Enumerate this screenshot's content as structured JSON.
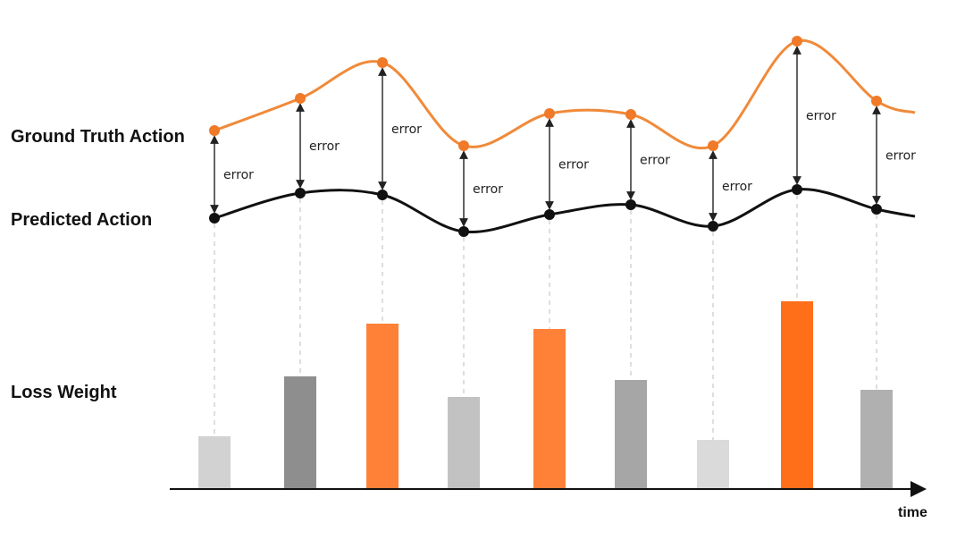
{
  "labels": {
    "ground_truth": "Ground Truth Action",
    "predicted": "Predicted Action",
    "loss_weight": "Loss Weight",
    "time_axis": "time"
  },
  "error_label": "error",
  "colors": {
    "ground_truth": "#F08A3A",
    "ground_truth_point": "#F07A28",
    "predicted": "#111111",
    "error_arrow": "#222222",
    "guide_line": "#C8C8C8",
    "axis": "#111111"
  },
  "samples": [
    {
      "error": "large",
      "weight": 0.28,
      "bar_color": "#D2D2D2"
    },
    {
      "error": "medium",
      "weight": 0.6,
      "bar_color": "#8E8E8E"
    },
    {
      "error": "large",
      "weight": 0.88,
      "bar_color": "#FF8138"
    },
    {
      "error": "medium",
      "weight": 0.49,
      "bar_color": "#C2C2C2"
    },
    {
      "error": "medium",
      "weight": 0.85,
      "bar_color": "#FF8138"
    },
    {
      "error": "medium",
      "weight": 0.58,
      "bar_color": "#A6A6A6"
    },
    {
      "error": "medium",
      "weight": 0.26,
      "bar_color": "#DADADA"
    },
    {
      "error": "large",
      "weight": 1.0,
      "bar_color": "#FF6F1A"
    },
    {
      "error": "medium",
      "weight": 0.53,
      "bar_color": "#B0B0B0"
    }
  ]
}
